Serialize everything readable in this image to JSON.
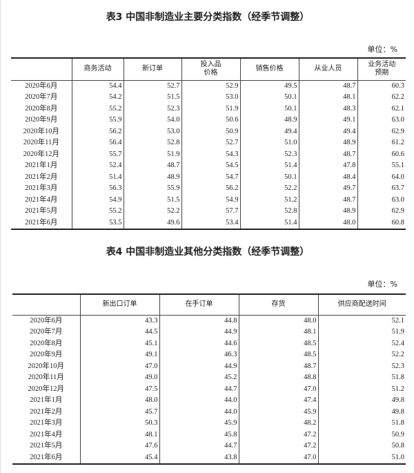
{
  "table3": {
    "title": "表3 中国非制造业主要分类指数（经季节调整）",
    "unit": "单位：%",
    "headers": [
      "",
      "商务活动",
      "新订单",
      "投入品\n价格",
      "销售价格",
      "从业人员",
      "业务活动\n预期"
    ],
    "rows": [
      [
        "2020年6月",
        "54.4",
        "52.7",
        "52.9",
        "49.5",
        "48.7",
        "60.3"
      ],
      [
        "2020年7月",
        "54.2",
        "51.5",
        "53.0",
        "50.1",
        "48.1",
        "62.2"
      ],
      [
        "2020年8月",
        "55.2",
        "52.3",
        "51.9",
        "50.1",
        "48.3",
        "62.1"
      ],
      [
        "2020年9月",
        "55.9",
        "54.0",
        "50.6",
        "48.9",
        "49.1",
        "63.0"
      ],
      [
        "2020年10月",
        "56.2",
        "53.0",
        "50.9",
        "49.4",
        "49.4",
        "62.9"
      ],
      [
        "2020年11月",
        "56.4",
        "52.8",
        "52.7",
        "51.0",
        "48.9",
        "61.2"
      ],
      [
        "2020年12月",
        "55.7",
        "51.9",
        "54.3",
        "52.3",
        "48.7",
        "60.6"
      ],
      [
        "2021年1月",
        "52.4",
        "48.7",
        "54.5",
        "51.4",
        "47.8",
        "55.1"
      ],
      [
        "2021年2月",
        "51.4",
        "48.9",
        "54.7",
        "50.1",
        "48.4",
        "64.0"
      ],
      [
        "2021年3月",
        "56.3",
        "55.9",
        "56.2",
        "52.2",
        "49.7",
        "63.7"
      ],
      [
        "2021年4月",
        "54.9",
        "51.5",
        "54.9",
        "51.2",
        "48.7",
        "63.0"
      ],
      [
        "2021年5月",
        "55.2",
        "52.2",
        "57.7",
        "52.8",
        "48.9",
        "62.9"
      ],
      [
        "2021年6月",
        "53.5",
        "49.6",
        "53.4",
        "51.4",
        "48.0",
        "60.8"
      ]
    ]
  },
  "table4": {
    "title": "表4 中国非制造业其他分类指数（经季节调整）",
    "unit": "单位：%",
    "headers": [
      "",
      "新出口订单",
      "在手订单",
      "存货",
      "供应商配送时间"
    ],
    "rows": [
      [
        "2020年6月",
        "43.3",
        "44.8",
        "48.0",
        "52.1"
      ],
      [
        "2020年7月",
        "44.5",
        "44.9",
        "48.1",
        "51.9"
      ],
      [
        "2020年8月",
        "45.1",
        "44.6",
        "48.5",
        "52.4"
      ],
      [
        "2020年9月",
        "49.1",
        "46.3",
        "48.5",
        "52.2"
      ],
      [
        "2020年10月",
        "47.0",
        "44.9",
        "48.7",
        "52.3"
      ],
      [
        "2020年11月",
        "49.0",
        "45.2",
        "48.8",
        "51.8"
      ],
      [
        "2020年12月",
        "47.5",
        "44.7",
        "47.0",
        "51.2"
      ],
      [
        "2021年1月",
        "48.0",
        "44.0",
        "47.4",
        "49.8"
      ],
      [
        "2021年2月",
        "45.7",
        "44.0",
        "45.9",
        "49.8"
      ],
      [
        "2021年3月",
        "50.3",
        "45.9",
        "48.2",
        "51.8"
      ],
      [
        "2021年4月",
        "48.1",
        "45.8",
        "47.2",
        "50.9"
      ],
      [
        "2021年5月",
        "47.6",
        "44.7",
        "47.2",
        "50.8"
      ],
      [
        "2021年6月",
        "45.4",
        "43.8",
        "47.0",
        "51.0"
      ]
    ]
  }
}
